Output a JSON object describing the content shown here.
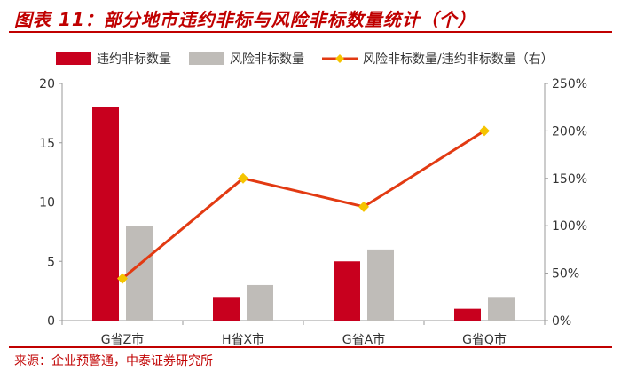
{
  "title": "图表 11：部分地市违约非标与风险非标数量统计（个）",
  "source": "来源：企业预警通，中泰证券研究所",
  "colors": {
    "title": "#c00000",
    "default_bar": "#c8001e",
    "risk_bar": "#bfbcb8",
    "ratio_line": "#e23a12",
    "ratio_marker": "#f5c400",
    "axis": "#999999",
    "text": "#333333"
  },
  "chart_data": {
    "type": "bar",
    "categories": [
      "G省Z市",
      "H省X市",
      "G省A市",
      "G省Q市"
    ],
    "series": [
      {
        "name": "违约非标数量",
        "type": "bar",
        "axis": "left",
        "values": [
          18,
          2,
          5,
          1
        ],
        "color": "#c8001e"
      },
      {
        "name": "风险非标数量",
        "type": "bar",
        "axis": "left",
        "values": [
          8,
          3,
          6,
          2
        ],
        "color": "#bfbcb8"
      },
      {
        "name": "风险非标数量/违约非标数量（右）",
        "type": "line",
        "axis": "right",
        "values": [
          0.444,
          1.5,
          1.2,
          2.0
        ],
        "color": "#e23a12",
        "marker_color": "#f5c400"
      }
    ],
    "y_left": {
      "min": 0,
      "max": 20,
      "ticks": [
        0,
        5,
        10,
        15,
        20
      ],
      "tick_labels": [
        "0",
        "5",
        "10",
        "15",
        "20"
      ]
    },
    "y_right": {
      "min": 0,
      "max": 2.5,
      "ticks": [
        0,
        0.5,
        1.0,
        1.5,
        2.0,
        2.5
      ],
      "tick_labels": [
        "0%",
        "50%",
        "100%",
        "150%",
        "200%",
        "250%"
      ]
    },
    "legend_position": "top",
    "grid": false
  }
}
